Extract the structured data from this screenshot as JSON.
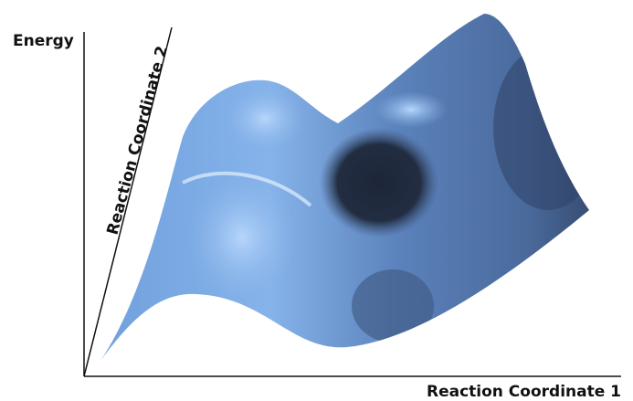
{
  "axes": {
    "y_label": "Energy",
    "depth_label": "Reaction Coordinate 2",
    "x_label": "Reaction Coordinate 1"
  }
}
